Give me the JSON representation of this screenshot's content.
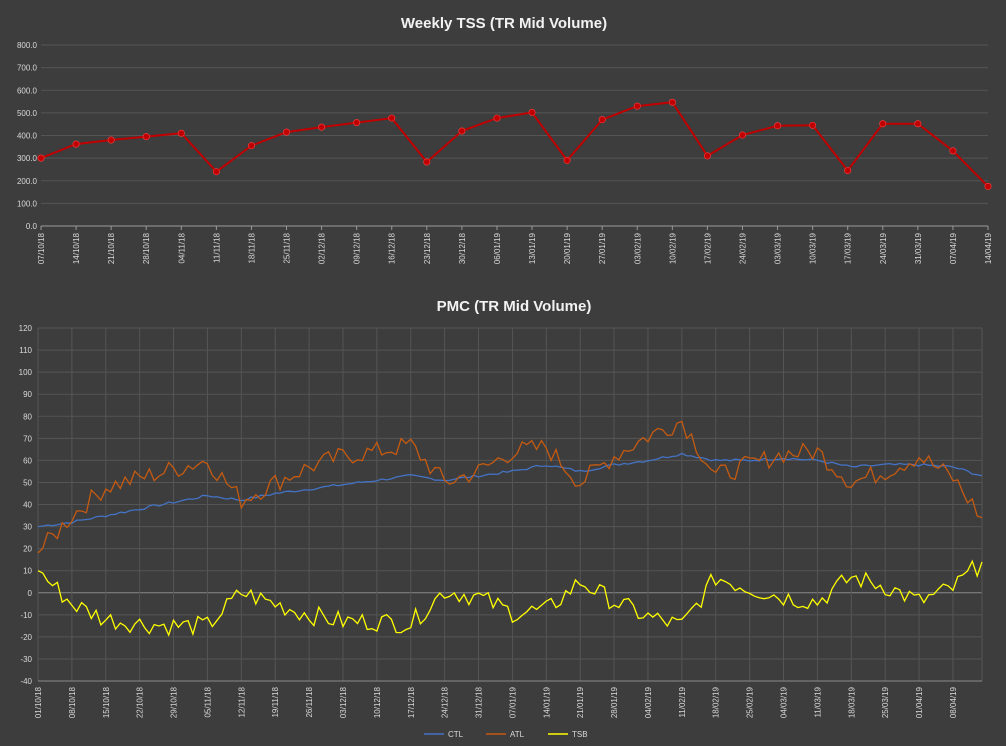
{
  "chart_data": [
    {
      "type": "line",
      "title": "Weekly TSS (TR Mid Volume)",
      "xlabel": "",
      "ylabel": "",
      "ylim": [
        0,
        800
      ],
      "yticks": [
        "0.0",
        "100.0",
        "200.0",
        "300.0",
        "400.0",
        "500.0",
        "600.0",
        "700.0",
        "800.0"
      ],
      "grid": "horizontal",
      "categories": [
        "07/10/18",
        "14/10/18",
        "21/10/18",
        "28/10/18",
        "04/11/18",
        "11/11/18",
        "18/11/18",
        "25/11/18",
        "02/12/18",
        "09/12/18",
        "16/12/18",
        "23/12/18",
        "30/12/18",
        "06/01/19",
        "13/01/19",
        "20/01/19",
        "27/01/19",
        "03/02/19",
        "10/02/19",
        "17/02/19",
        "24/02/19",
        "03/03/19",
        "10/03/19",
        "17/03/19",
        "24/03/19",
        "31/03/19",
        "07/04/19",
        "14/04/19"
      ],
      "series": [
        {
          "color": "#c00000",
          "values": [
            300,
            362,
            380,
            395,
            410,
            240,
            355,
            415,
            437,
            457,
            477,
            283,
            420,
            477,
            502,
            290,
            470,
            530,
            547,
            310,
            402,
            443,
            445,
            245,
            452,
            452,
            332,
            175
          ]
        }
      ]
    },
    {
      "type": "line",
      "title": "PMC (TR Mid Volume)",
      "xlabel": "",
      "ylabel": "",
      "ylim": [
        -40,
        120
      ],
      "yticks": [
        "-40",
        "-30",
        "-20",
        "-10",
        "0",
        "10",
        "20",
        "30",
        "40",
        "50",
        "60",
        "70",
        "80",
        "90",
        "100",
        "110",
        "120"
      ],
      "grid": "both",
      "x_start": "01/10/18",
      "x_end": "14/04/19",
      "xticks": [
        "01/10/18",
        "08/10/18",
        "15/10/18",
        "22/10/18",
        "29/10/18",
        "05/11/18",
        "12/11/18",
        "19/11/18",
        "26/11/18",
        "03/12/18",
        "10/12/18",
        "17/12/18",
        "24/12/18",
        "31/12/18",
        "07/01/19",
        "14/01/19",
        "21/01/19",
        "28/01/19",
        "04/02/19",
        "11/02/19",
        "18/02/19",
        "25/02/19",
        "04/03/19",
        "11/03/19",
        "18/03/19",
        "25/03/19",
        "01/04/19",
        "08/04/19"
      ],
      "legend": "bottom",
      "series": [
        {
          "name": "CTL",
          "color": "#4472c4",
          "points": [
            [
              0,
              30
            ],
            [
              7,
              32
            ],
            [
              14,
              35
            ],
            [
              21,
              38
            ],
            [
              28,
              41
            ],
            [
              35,
              44
            ],
            [
              42,
              42
            ],
            [
              49,
              45
            ],
            [
              56,
              47
            ],
            [
              63,
              49
            ],
            [
              70,
              51
            ],
            [
              77,
              53
            ],
            [
              84,
              51
            ],
            [
              91,
              53
            ],
            [
              98,
              55
            ],
            [
              105,
              58
            ],
            [
              112,
              55
            ],
            [
              119,
              58
            ],
            [
              126,
              60
            ],
            [
              133,
              63
            ],
            [
              140,
              60
            ],
            [
              147,
              60
            ],
            [
              154,
              61
            ],
            [
              161,
              60
            ],
            [
              168,
              57
            ],
            [
              175,
              58
            ],
            [
              182,
              58
            ],
            [
              189,
              57
            ],
            [
              195,
              53
            ]
          ]
        },
        {
          "name": "ATL",
          "color": "#c55a11",
          "points": [
            [
              0,
              18
            ],
            [
              7,
              35
            ],
            [
              14,
              48
            ],
            [
              21,
              52
            ],
            [
              28,
              56
            ],
            [
              35,
              60
            ],
            [
              42,
              42
            ],
            [
              49,
              50
            ],
            [
              56,
              57
            ],
            [
              63,
              62
            ],
            [
              70,
              64
            ],
            [
              77,
              67
            ],
            [
              84,
              50
            ],
            [
              91,
              55
            ],
            [
              98,
              64
            ],
            [
              105,
              66
            ],
            [
              112,
              50
            ],
            [
              119,
              62
            ],
            [
              126,
              71
            ],
            [
              133,
              78
            ],
            [
              140,
              53
            ],
            [
              147,
              58
            ],
            [
              154,
              63
            ],
            [
              161,
              64
            ],
            [
              168,
              50
            ],
            [
              175,
              55
            ],
            [
              182,
              62
            ],
            [
              189,
              52
            ],
            [
              195,
              34
            ]
          ]
        },
        {
          "name": "TSB",
          "color": "#ffff00",
          "points": [
            [
              0,
              10
            ],
            [
              7,
              -5
            ],
            [
              14,
              -12
            ],
            [
              21,
              -14
            ],
            [
              28,
              -15
            ],
            [
              35,
              -15
            ],
            [
              42,
              0
            ],
            [
              49,
              -5
            ],
            [
              56,
              -10
            ],
            [
              63,
              -13
            ],
            [
              70,
              -13
            ],
            [
              77,
              -14
            ],
            [
              84,
              1
            ],
            [
              91,
              -2
            ],
            [
              98,
              -9
            ],
            [
              105,
              -8
            ],
            [
              112,
              5
            ],
            [
              119,
              -4
            ],
            [
              126,
              -11
            ],
            [
              133,
              -15
            ],
            [
              140,
              7
            ],
            [
              147,
              2
            ],
            [
              154,
              -2
            ],
            [
              161,
              -4
            ],
            [
              168,
              7
            ],
            [
              175,
              3
            ],
            [
              182,
              -4
            ],
            [
              189,
              2
            ],
            [
              195,
              14
            ]
          ]
        }
      ]
    }
  ]
}
